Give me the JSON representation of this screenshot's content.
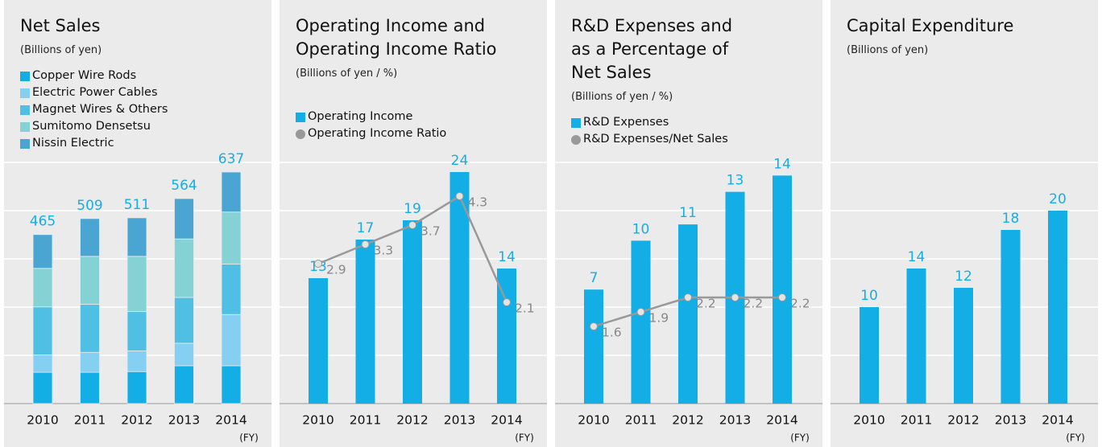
{
  "chart_data": [
    {
      "type": "stacked_bar",
      "title": "Net Sales",
      "subtitle": "(Billions of yen)",
      "categories": [
        "2010",
        "2011",
        "2012",
        "2013",
        "2014"
      ],
      "x_unit": "(FY)",
      "series": [
        {
          "name": "Copper Wire Rods",
          "color": "#14aee6",
          "values": [
            86,
            86,
            88,
            104,
            104
          ]
        },
        {
          "name": "Electric Power Cables",
          "color": "#84cff2",
          "values": [
            48,
            55,
            57,
            62,
            141
          ]
        },
        {
          "name": "Magnet Wires & Others",
          "color": "#4fbfe3",
          "values": [
            132,
            132,
            108,
            126,
            139
          ]
        },
        {
          "name": "Sumitomo Densetsu",
          "color": "#85d2d4",
          "values": [
            106,
            132,
            152,
            161,
            143
          ]
        },
        {
          "name": "Nissin Electric",
          "color": "#4aa5d2",
          "values": [
            93,
            104,
            106,
            111,
            110
          ]
        }
      ],
      "totals": [
        465,
        509,
        511,
        564,
        637
      ],
      "totals_color": "#14aee6",
      "ylim": [
        0,
        690
      ]
    },
    {
      "type": "bar_line",
      "title": "Operating Income and Operating Income Ratio",
      "subtitle": "(Billions of yen / %)",
      "categories": [
        "2010",
        "2011",
        "2012",
        "2013",
        "2014"
      ],
      "x_unit": "(FY)",
      "series": [
        {
          "name": "Operating Income",
          "type": "bar",
          "color": "#14aee6",
          "values": [
            13,
            17,
            19,
            24,
            14
          ]
        },
        {
          "name": "Operating Income Ratio",
          "type": "line",
          "axis": "y2",
          "color": "#999999",
          "values": [
            2.9,
            3.3,
            3.7,
            4.3,
            2.1
          ]
        }
      ],
      "ylim": [
        0,
        26
      ],
      "y2lim": [
        0,
        5.2
      ]
    },
    {
      "type": "bar_line",
      "title": "R&D Expenses and as a Percentage of Net Sales",
      "subtitle": "(Billions of yen / %)",
      "categories": [
        "2010",
        "2011",
        "2012",
        "2013",
        "2014"
      ],
      "x_unit": "(FY)",
      "series": [
        {
          "name": "R&D Expenses",
          "type": "bar",
          "color": "#14aee6",
          "values": [
            7,
            10,
            11,
            13,
            14
          ]
        },
        {
          "name": "R&D Expenses/Net Sales",
          "type": "line",
          "axis": "y2",
          "color": "#999999",
          "values": [
            1.6,
            1.9,
            2.2,
            2.2,
            2.2
          ]
        }
      ],
      "ylim": [
        0,
        15.4
      ],
      "y2lim": [
        0,
        5.2
      ]
    },
    {
      "type": "bar",
      "title": "Capital Expenditure",
      "subtitle": "(Billions of yen)",
      "categories": [
        "2010",
        "2011",
        "2012",
        "2013",
        "2014"
      ],
      "x_unit": "(FY)",
      "series": [
        {
          "name": "Capital Expenditure",
          "type": "bar",
          "color": "#14aee6",
          "values": [
            10,
            14,
            12,
            18,
            20
          ]
        }
      ],
      "show_legend": false,
      "ylim": [
        0,
        26
      ]
    }
  ]
}
